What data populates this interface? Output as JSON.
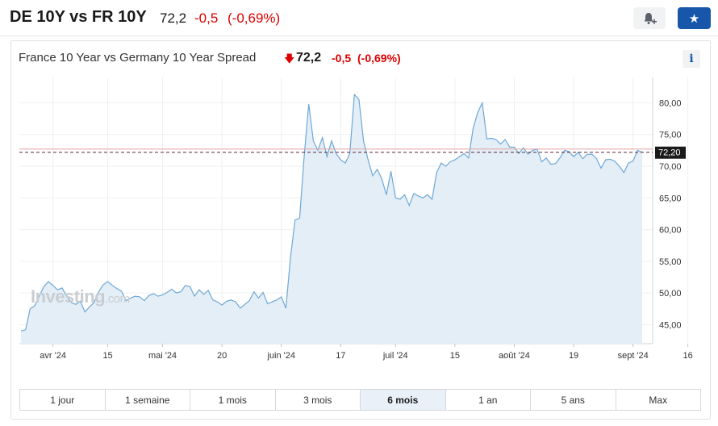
{
  "header": {
    "title": "DE 10Y vs FR 10Y",
    "price": "72,2",
    "change": "-0,5",
    "change_pct": "(-0,69%)",
    "bell_icon": "bell-plus-icon",
    "star_icon": "star-icon"
  },
  "chart_header": {
    "title": "France 10 Year vs Germany 10 Year Spread",
    "price": "72,2",
    "change": "-0,5",
    "change_pct": "(-0,69%)",
    "info_label": "i"
  },
  "watermark": {
    "brand": "Investing",
    "suffix": ".com"
  },
  "tabs": [
    {
      "label": "1 jour",
      "active": false
    },
    {
      "label": "1 semaine",
      "active": false
    },
    {
      "label": "1 mois",
      "active": false
    },
    {
      "label": "3 mois",
      "active": false
    },
    {
      "label": "6 mois",
      "active": true
    },
    {
      "label": "1 an",
      "active": false
    },
    {
      "label": "5 ans",
      "active": false
    },
    {
      "label": "Max",
      "active": false
    }
  ],
  "colors": {
    "line": "#6fa8d6",
    "fill": "#e4eef7",
    "negative": "#dc0000",
    "accent": "#1756a9",
    "last_label_bg": "#1a1a1a",
    "ref_line": "#e0a0a0"
  },
  "chart_data": {
    "type": "area",
    "ylim": [
      42,
      84
    ],
    "y_ticks": [
      "45,00",
      "50,00",
      "55,00",
      "60,00",
      "65,00",
      "70,00",
      "75,00",
      "80,00"
    ],
    "y_tick_values": [
      45,
      50,
      55,
      60,
      65,
      70,
      75,
      80
    ],
    "x_tick_labels": [
      "avr '24",
      "15",
      "mai '24",
      "20",
      "juin '24",
      "17",
      "juil '24",
      "15",
      "août '24",
      "19",
      "sept '24",
      "16"
    ],
    "last_value_label": "72,20",
    "last_value": 72.2,
    "reference_value": 72.7,
    "values": [
      44.0,
      44.2,
      47.5,
      48.0,
      49.5,
      51.0,
      51.8,
      51.2,
      50.5,
      50.8,
      49.5,
      48.5,
      48.2,
      48.7,
      47.0,
      47.8,
      48.5,
      50.2,
      51.3,
      51.8,
      51.2,
      50.7,
      50.3,
      48.8,
      49.2,
      49.5,
      49.4,
      48.8,
      49.6,
      49.9,
      49.5,
      49.7,
      50.1,
      50.6,
      50.0,
      50.2,
      51.2,
      51.0,
      49.5,
      50.5,
      49.8,
      50.4,
      48.9,
      48.6,
      48.1,
      48.7,
      48.9,
      48.6,
      47.6,
      48.2,
      48.8,
      50.2,
      49.2,
      50.1,
      48.3,
      48.6,
      48.9,
      49.4,
      47.6,
      55.5,
      61.5,
      61.8,
      71.5,
      79.8,
      74.0,
      72.5,
      74.5,
      71.5,
      74.0,
      72.0,
      71.0,
      70.5,
      72.0,
      81.3,
      80.5,
      74.0,
      71.0,
      68.5,
      69.5,
      68.0,
      65.5,
      69.2,
      65.0,
      64.8,
      65.5,
      63.8,
      65.7,
      65.3,
      65.0,
      65.5,
      64.8,
      69.0,
      70.5,
      70.0,
      70.7,
      71.0,
      71.5,
      72.0,
      71.3,
      76.0,
      78.5,
      80.0,
      74.3,
      74.4,
      74.2,
      73.5,
      74.2,
      73.0,
      73.0,
      72.0,
      72.9,
      71.9,
      72.5,
      72.7,
      70.7,
      71.3,
      70.3,
      70.4,
      71.3,
      72.5,
      72.3,
      71.5,
      72.2,
      71.2,
      71.9,
      71.9,
      71.2,
      69.7,
      71.0,
      71.1,
      70.8,
      70.0,
      69.0,
      70.5,
      70.8,
      72.5,
      72.2
    ]
  }
}
